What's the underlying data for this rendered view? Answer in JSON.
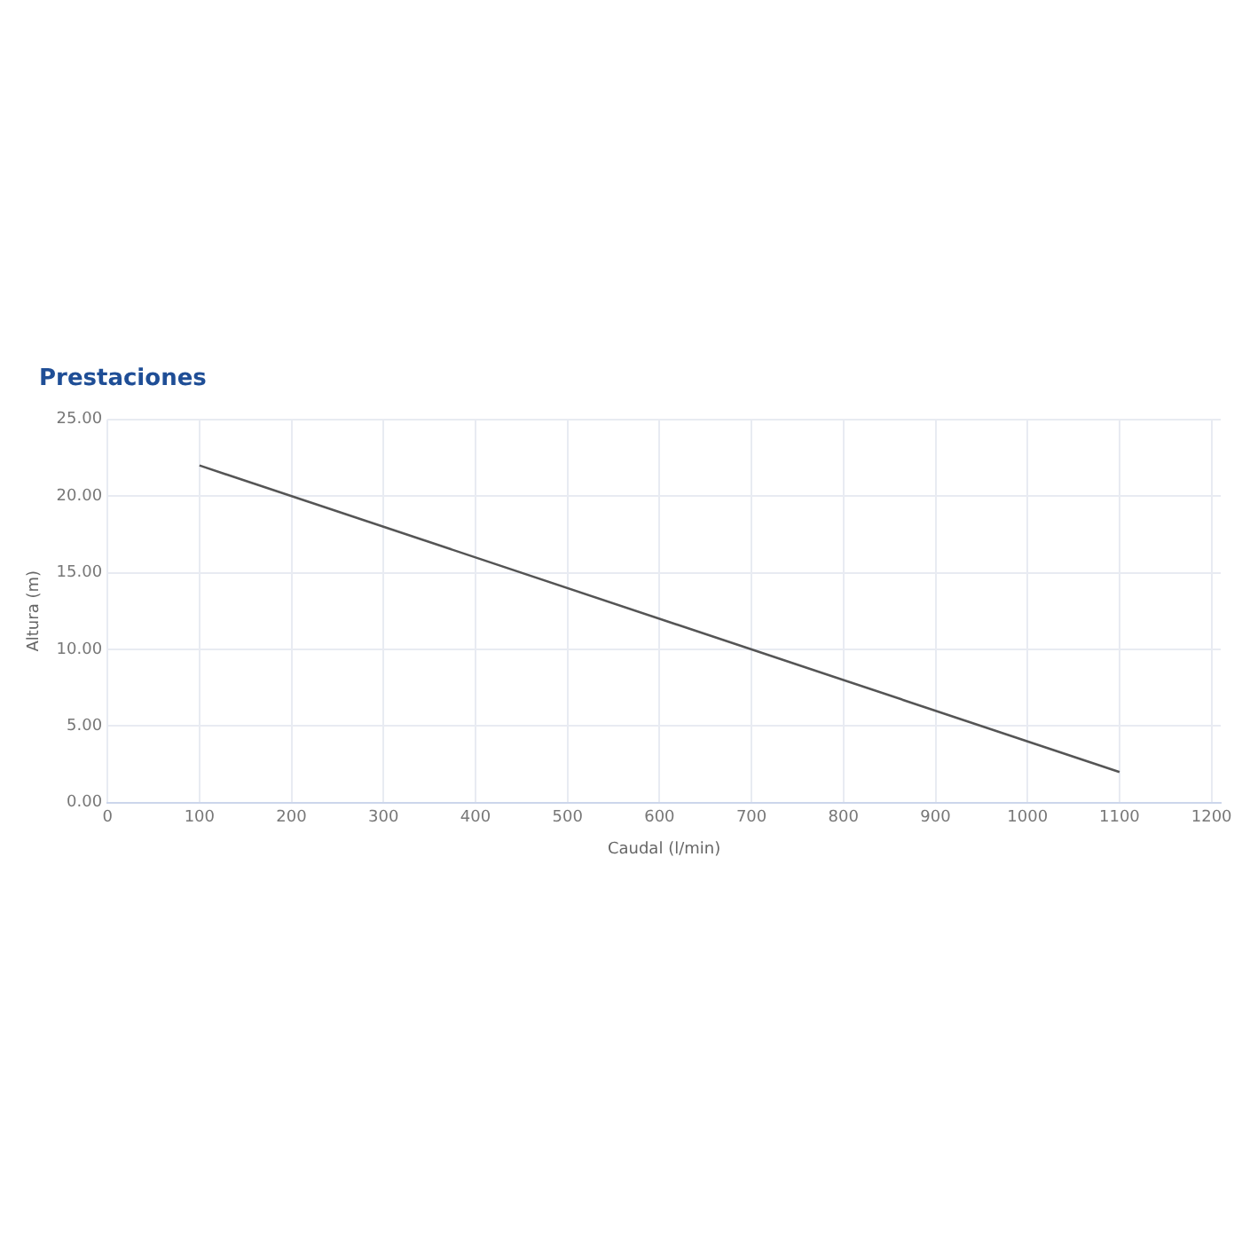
{
  "chart_data": {
    "type": "line",
    "title": "Prestaciones",
    "xlabel": "Caudal (l/min)",
    "ylabel": "Altura (m)",
    "x": [
      100,
      1100
    ],
    "series": [
      {
        "color": "#555555",
        "values": [
          22,
          2
        ]
      }
    ],
    "xlim": [
      0,
      1210
    ],
    "xticks": [
      0,
      100,
      200,
      300,
      400,
      500,
      600,
      700,
      800,
      900,
      1000,
      1100,
      1200
    ],
    "ylim": [
      0,
      25
    ],
    "yticks": [
      {
        "value": 0,
        "label": "0.00"
      },
      {
        "value": 5,
        "label": "5.00"
      },
      {
        "value": 10,
        "label": "10.00"
      },
      {
        "value": 15,
        "label": "15.00"
      },
      {
        "value": 20,
        "label": "20.00"
      },
      {
        "value": 25,
        "label": "25.00"
      }
    ],
    "grid": true,
    "marker": "none",
    "line_style": "solid",
    "legend": false
  }
}
